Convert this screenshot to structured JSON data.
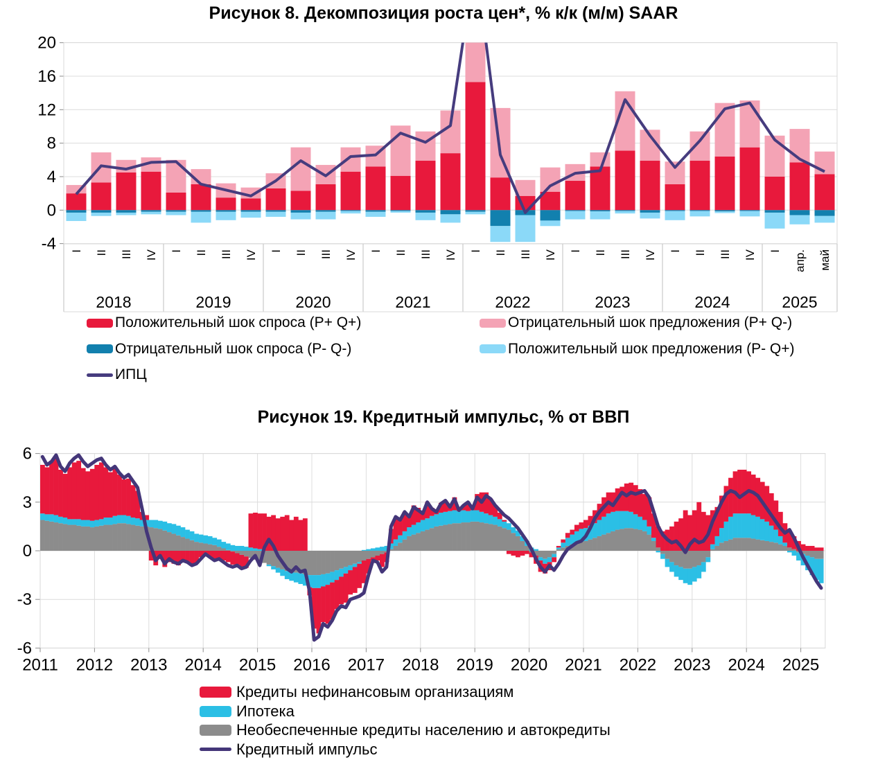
{
  "figure8": {
    "title": "Рисунок 8. Декомпозиция роста цен*, % к/к (м/м) SAAR",
    "chart_data": {
      "type": "bar",
      "stacked": true,
      "grid": true,
      "y_ticks": [
        20,
        16,
        12,
        8,
        4,
        0,
        -4
      ],
      "ylim": [
        -4,
        20
      ],
      "groups": [
        {
          "year": "2018",
          "ticks": [
            "I",
            "II",
            "III",
            "IV"
          ]
        },
        {
          "year": "2019",
          "ticks": [
            "I",
            "II",
            "III",
            "IV"
          ]
        },
        {
          "year": "2020",
          "ticks": [
            "I",
            "II",
            "III",
            "IV"
          ]
        },
        {
          "year": "2021",
          "ticks": [
            "I",
            "II",
            "III",
            "IV"
          ]
        },
        {
          "year": "2022",
          "ticks": [
            "I",
            "II",
            "III",
            "IV"
          ]
        },
        {
          "year": "2023",
          "ticks": [
            "I",
            "II",
            "III",
            "IV"
          ]
        },
        {
          "year": "2024",
          "ticks": [
            "I",
            "II",
            "III",
            "IV"
          ]
        },
        {
          "year": "2025",
          "ticks": [
            "I",
            "апр.",
            "май"
          ]
        }
      ],
      "series": [
        {
          "name": "Положительный шок спроса (P+ Q+)",
          "color": "#e8193c",
          "values": [
            2.0,
            3.3,
            4.5,
            4.6,
            2.1,
            3.1,
            1.5,
            1.4,
            2.6,
            2.3,
            3.1,
            4.6,
            5.2,
            4.1,
            5.9,
            6.8,
            15.3,
            3.9,
            1.7,
            2.2,
            3.5,
            5.2,
            7.1,
            5.9,
            3.1,
            5.9,
            6.4,
            7.5,
            4.0,
            5.7,
            4.3
          ]
        },
        {
          "name": "Отрицательный шок предложения (P+ Q-)",
          "color": "#f4a3b5",
          "values": [
            1.0,
            3.6,
            1.5,
            1.7,
            3.9,
            1.8,
            1.7,
            1.3,
            1.8,
            5.2,
            2.3,
            2.9,
            2.5,
            6.0,
            3.5,
            5.1,
            6.0,
            8.3,
            1.9,
            2.9,
            2.0,
            1.7,
            7.1,
            3.7,
            2.7,
            3.5,
            6.4,
            5.6,
            4.9,
            4.0,
            2.7
          ]
        },
        {
          "name": "Отрицательный шок спроса (P- Q-)",
          "color": "#1280ae",
          "values": [
            -0.3,
            -0.3,
            -0.3,
            -0.2,
            -0.2,
            -0.2,
            -0.2,
            -0.2,
            -0.2,
            -0.3,
            -0.2,
            -0.1,
            -0.2,
            -0.1,
            -0.3,
            -0.5,
            -0.2,
            -1.9,
            -0.6,
            -1.25,
            -0.1,
            -0.15,
            -0.1,
            -0.3,
            -0.1,
            -0.1,
            -0.15,
            -0.1,
            -0.3,
            -0.6,
            -0.7
          ]
        },
        {
          "name": "Положительный шок предложения (P- Q+)",
          "color": "#8bd9f8",
          "values": [
            -1.0,
            -0.4,
            -0.3,
            -0.3,
            -0.4,
            -1.3,
            -1.0,
            -0.7,
            -0.6,
            -0.8,
            -0.9,
            -0.3,
            -0.6,
            -0.2,
            -0.9,
            -1.0,
            -0.3,
            -1.9,
            -3.2,
            -0.65,
            -1.0,
            -0.95,
            -0.3,
            -0.7,
            -1.1,
            -0.65,
            -0.2,
            -0.65,
            -1.9,
            -1.1,
            -0.8
          ]
        }
      ],
      "line": {
        "name": "ИПЦ",
        "color": "#463c7e",
        "values": [
          1.9,
          5.3,
          4.9,
          5.7,
          5.8,
          3.1,
          2.4,
          1.7,
          3.5,
          5.9,
          4.1,
          6.4,
          6.6,
          9.2,
          8.1,
          10.1,
          30,
          6.6,
          -0.3,
          2.9,
          4.4,
          4.7,
          13.2,
          8.9,
          5.1,
          8.3,
          12.1,
          12.8,
          8.4,
          6.1,
          4.6
        ]
      }
    },
    "legend_columns": [
      [
        {
          "label": "Положительный шок спроса (P+ Q+)",
          "color": "#e8193c",
          "type": "box"
        },
        {
          "label": "Отрицательный шок спроса (P- Q-)",
          "color": "#1280ae",
          "type": "box"
        },
        {
          "label": "ИПЦ",
          "color": "#463c7e",
          "type": "line"
        }
      ],
      [
        {
          "label": "Отрицательный шок предложения (P+ Q-)",
          "color": "#f4a3b5",
          "type": "box"
        },
        {
          "label": "Положительный шок предложения (P- Q+)",
          "color": "#8bd9f8",
          "type": "box"
        }
      ]
    ]
  },
  "figure19": {
    "title": "Рисунок 19. Кредитный импульс, % от ВВП",
    "chart_data": {
      "type": "bar",
      "stacked": true,
      "grid": true,
      "start_year": 2011,
      "months_per_year": 12,
      "x_labels": [
        "2011",
        "2012",
        "2013",
        "2014",
        "2015",
        "2016",
        "2017",
        "2018",
        "2019",
        "2020",
        "2021",
        "2022",
        "2023",
        "2024",
        "2025"
      ],
      "y_ticks": [
        6,
        3,
        0,
        -3,
        -6
      ],
      "ylim": [
        -6,
        6
      ],
      "series": [
        {
          "name": "Необеспеченные кредиты населению и автокредиты",
          "color": "#8c8c8c",
          "values": [
            1.9,
            1.85,
            1.8,
            1.75,
            1.7,
            1.65,
            1.6,
            1.6,
            1.55,
            1.5,
            1.5,
            1.45,
            1.5,
            1.55,
            1.6,
            1.6,
            1.65,
            1.7,
            1.7,
            1.65,
            1.6,
            1.55,
            1.5,
            1.5,
            1.45,
            1.4,
            1.35,
            1.25,
            1.15,
            1.05,
            0.95,
            0.85,
            0.75,
            0.65,
            0.55,
            0.5,
            0.45,
            0.4,
            0.35,
            0.25,
            0.15,
            0.05,
            -0.05,
            -0.15,
            -0.25,
            -0.35,
            -0.45,
            -0.55,
            -0.65,
            -0.75,
            -0.85,
            -0.95,
            -1.05,
            -1.15,
            -1.25,
            -1.3,
            -1.35,
            -1.4,
            -1.45,
            -1.5,
            -1.5,
            -1.5,
            -1.45,
            -1.4,
            -1.3,
            -1.2,
            -1.1,
            -1.0,
            -0.9,
            -0.8,
            -0.7,
            -0.6,
            -0.5,
            -0.4,
            -0.3,
            -0.2,
            -0.1,
            0.1,
            0.3,
            0.5,
            0.7,
            0.9,
            1.0,
            1.1,
            1.2,
            1.3,
            1.4,
            1.5,
            1.55,
            1.6,
            1.65,
            1.7,
            1.7,
            1.75,
            1.75,
            1.8,
            1.8,
            1.75,
            1.7,
            1.65,
            1.6,
            1.5,
            1.4,
            1.3,
            1.1,
            0.9,
            0.6,
            0.3,
            -0.1,
            -0.3,
            -0.4,
            -0.5,
            -0.4,
            -0.2,
            0.1,
            0.2,
            0.3,
            0.4,
            0.5,
            0.55,
            0.6,
            0.7,
            0.8,
            0.9,
            1.0,
            1.1,
            1.2,
            1.3,
            1.35,
            1.4,
            1.4,
            1.35,
            1.3,
            1.2,
            1.0,
            0.6,
            0.2,
            -0.2,
            -0.5,
            -0.7,
            -0.9,
            -1.0,
            -1.1,
            -1.1,
            -1.0,
            -0.9,
            -0.7,
            -0.4,
            0.1,
            0.3,
            0.5,
            0.6,
            0.7,
            0.8,
            0.8,
            0.8,
            0.8,
            0.75,
            0.7,
            0.65,
            0.6,
            0.55,
            0.5,
            0.4,
            0.3,
            0.2,
            0.1,
            -0.1,
            -0.2,
            -0.3,
            -0.4,
            -0.5,
            -0.5
          ]
        },
        {
          "name": "Ипотека",
          "color": "#2bbfe5",
          "values": [
            0.4,
            0.4,
            0.45,
            0.45,
            0.4,
            0.4,
            0.35,
            0.35,
            0.4,
            0.4,
            0.4,
            0.4,
            0.4,
            0.4,
            0.45,
            0.45,
            0.5,
            0.5,
            0.5,
            0.5,
            0.45,
            0.45,
            0.4,
            0.4,
            0.45,
            0.5,
            0.5,
            0.55,
            0.55,
            0.6,
            0.6,
            0.6,
            0.55,
            0.55,
            0.5,
            0.5,
            0.5,
            0.5,
            0.45,
            0.45,
            0.4,
            0.4,
            0.35,
            0.3,
            0.3,
            0.25,
            0.2,
            0.15,
            0.1,
            0.0,
            -0.1,
            -0.2,
            -0.3,
            -0.4,
            -0.5,
            -0.55,
            -0.6,
            -0.65,
            -0.7,
            -0.75,
            -0.8,
            -0.8,
            -0.75,
            -0.7,
            -0.65,
            -0.6,
            -0.5,
            -0.4,
            -0.3,
            -0.2,
            -0.1,
            0.05,
            0.1,
            0.15,
            0.2,
            0.25,
            0.3,
            0.35,
            0.4,
            0.45,
            0.5,
            0.55,
            0.6,
            0.65,
            0.7,
            0.7,
            0.75,
            0.75,
            0.8,
            0.8,
            0.8,
            0.8,
            0.75,
            0.75,
            0.7,
            0.7,
            0.7,
            0.65,
            0.6,
            0.55,
            0.5,
            0.45,
            0.4,
            0.4,
            0.35,
            0.35,
            0.3,
            0.3,
            0.2,
            0.1,
            -0.2,
            -0.3,
            -0.3,
            -0.2,
            0.1,
            0.3,
            0.5,
            0.6,
            0.7,
            0.8,
            0.8,
            0.85,
            0.9,
            1.0,
            1.1,
            1.2,
            1.2,
            1.15,
            1.1,
            1.05,
            1.0,
            0.9,
            0.8,
            0.7,
            0.5,
            0.2,
            -0.1,
            -0.3,
            -0.5,
            -0.6,
            -0.7,
            -0.8,
            -0.9,
            -1.0,
            -0.9,
            -0.8,
            -0.6,
            -0.3,
            0.3,
            0.6,
            0.9,
            1.2,
            1.4,
            1.5,
            1.5,
            1.5,
            1.5,
            1.45,
            1.4,
            1.3,
            1.2,
            1.0,
            0.8,
            0.5,
            0.2,
            -0.1,
            -0.3,
            -0.5,
            -0.7,
            -0.9,
            -1.1,
            -1.3,
            -1.5
          ]
        },
        {
          "name": "Кредиты нефинансовым организациям",
          "color": "#e8193c",
          "values": [
            3.0,
            2.9,
            3.3,
            3.5,
            2.9,
            2.7,
            3.2,
            3.5,
            3.6,
            3.2,
            3.0,
            3.2,
            3.4,
            3.5,
            3.1,
            2.8,
            2.9,
            2.5,
            2.2,
            2.3,
            2.0,
            1.7,
            0.5,
            0.3,
            -0.6,
            -0.9,
            -0.5,
            -1.0,
            -0.7,
            -0.8,
            -0.9,
            -0.6,
            -0.7,
            -0.9,
            -0.8,
            -0.4,
            -0.3,
            -0.4,
            -0.6,
            -0.5,
            -0.6,
            -0.7,
            -0.8,
            -0.7,
            -0.9,
            -0.7,
            2.1,
            2.2,
            2.2,
            2.3,
            2.1,
            2.2,
            2.0,
            2.1,
            2.2,
            1.9,
            2.1,
            1.9,
            2.0,
            -0.5,
            -2.5,
            -2.8,
            -2.2,
            -2.4,
            -2.3,
            -1.8,
            -1.7,
            -1.8,
            -1.5,
            -1.6,
            -1.5,
            -1.4,
            -0.9,
            -0.2,
            -0.3,
            -0.8,
            -0.6,
            0.9,
            1.3,
            1.0,
            1.2,
            0.8,
            1.2,
            0.9,
            0.5,
            1.0,
            0.5,
            0.2,
            0.6,
            0.7,
            0.3,
            0.8,
            0.1,
            0.3,
            0.5,
            0.2,
            1.0,
            1.2,
            1.3,
            1.0,
            0.7,
            0.4,
            0.1,
            -0.2,
            -0.3,
            -0.4,
            -0.3,
            -0.2,
            -0.3,
            -0.5,
            -0.7,
            -0.6,
            -0.5,
            -0.3,
            0.1,
            0.2,
            0.3,
            0.3,
            0.4,
            0.4,
            0.5,
            0.6,
            0.8,
            1.0,
            1.2,
            1.3,
            1.2,
            1.4,
            1.5,
            1.7,
            1.8,
            1.8,
            1.7,
            1.6,
            1.8,
            1.5,
            1.3,
            1.2,
            1.3,
            1.5,
            1.8,
            2.0,
            2.5,
            2.2,
            2.5,
            3.0,
            2.4,
            2.2,
            2.1,
            1.8,
            2.0,
            2.2,
            2.4,
            2.6,
            2.7,
            2.7,
            2.6,
            2.5,
            2.4,
            2.3,
            2.2,
            2.0,
            1.8,
            1.5,
            1.2,
            1.0,
            0.8,
            0.6,
            0.4,
            0.3,
            0.3,
            0.2,
            0.2
          ]
        }
      ],
      "line": {
        "name": "Кредитный импульс",
        "color": "#443679",
        "values": [
          5.8,
          5.3,
          5.5,
          5.9,
          5.2,
          4.9,
          5.4,
          5.7,
          5.9,
          5.5,
          5.2,
          5.4,
          5.6,
          5.7,
          5.3,
          5.0,
          5.2,
          4.8,
          4.5,
          4.7,
          4.3,
          3.9,
          2.6,
          1.2,
          0.2,
          -0.6,
          -0.3,
          -0.8,
          -0.5,
          -0.7,
          -0.8,
          -0.6,
          -0.7,
          -0.9,
          -0.8,
          -0.5,
          -0.2,
          -0.4,
          -0.6,
          -0.5,
          -0.7,
          -0.9,
          -1.0,
          -0.9,
          -1.1,
          -1.0,
          -0.6,
          -0.3,
          -0.9,
          0.2,
          0.7,
          0.3,
          -0.3,
          -0.7,
          -1.1,
          -1.3,
          -1.0,
          -1.3,
          -1.2,
          -2.5,
          -5.5,
          -5.3,
          -4.5,
          -4.7,
          -4.3,
          -3.7,
          -3.4,
          -3.5,
          -3.0,
          -2.9,
          -2.8,
          -2.6,
          -1.5,
          -0.6,
          -0.7,
          -1.3,
          -1.0,
          1.5,
          2.1,
          1.9,
          2.4,
          2.1,
          2.7,
          2.5,
          2.3,
          3.0,
          2.6,
          2.4,
          2.9,
          3.1,
          2.7,
          3.2,
          2.5,
          2.8,
          3.0,
          2.6,
          3.3,
          3.0,
          3.4,
          3.2,
          2.8,
          2.5,
          2.2,
          2.0,
          1.7,
          1.4,
          1.0,
          0.6,
          0.1,
          -0.5,
          -1.0,
          -1.3,
          -0.9,
          -1.2,
          -0.8,
          -0.3,
          0.1,
          0.3,
          0.5,
          0.6,
          0.9,
          1.4,
          2.0,
          2.4,
          2.7,
          3.0,
          2.8,
          3.2,
          3.6,
          3.4,
          3.6,
          3.5,
          3.6,
          3.7,
          3.3,
          2.4,
          1.5,
          1.0,
          0.7,
          0.5,
          0.6,
          0.3,
          -0.1,
          0.4,
          0.7,
          0.5,
          0.6,
          1.0,
          1.8,
          2.4,
          3.0,
          3.5,
          3.7,
          3.6,
          3.3,
          3.5,
          3.7,
          3.6,
          3.4,
          3.0,
          2.6,
          2.2,
          1.8,
          1.4,
          1.1,
          1.3,
          0.8,
          0.2,
          -0.4,
          -0.9,
          -1.4,
          -1.9,
          -2.3
        ]
      }
    },
    "legend": [
      {
        "label": "Кредиты нефинансовым организациям",
        "color": "#e8193c",
        "type": "box"
      },
      {
        "label": "Ипотека",
        "color": "#2bbfe5",
        "type": "box"
      },
      {
        "label": "Необеспеченные кредиты населению и автокредиты",
        "color": "#8c8c8c",
        "type": "box"
      },
      {
        "label": "Кредитный импульс",
        "color": "#443679",
        "type": "line"
      }
    ]
  }
}
